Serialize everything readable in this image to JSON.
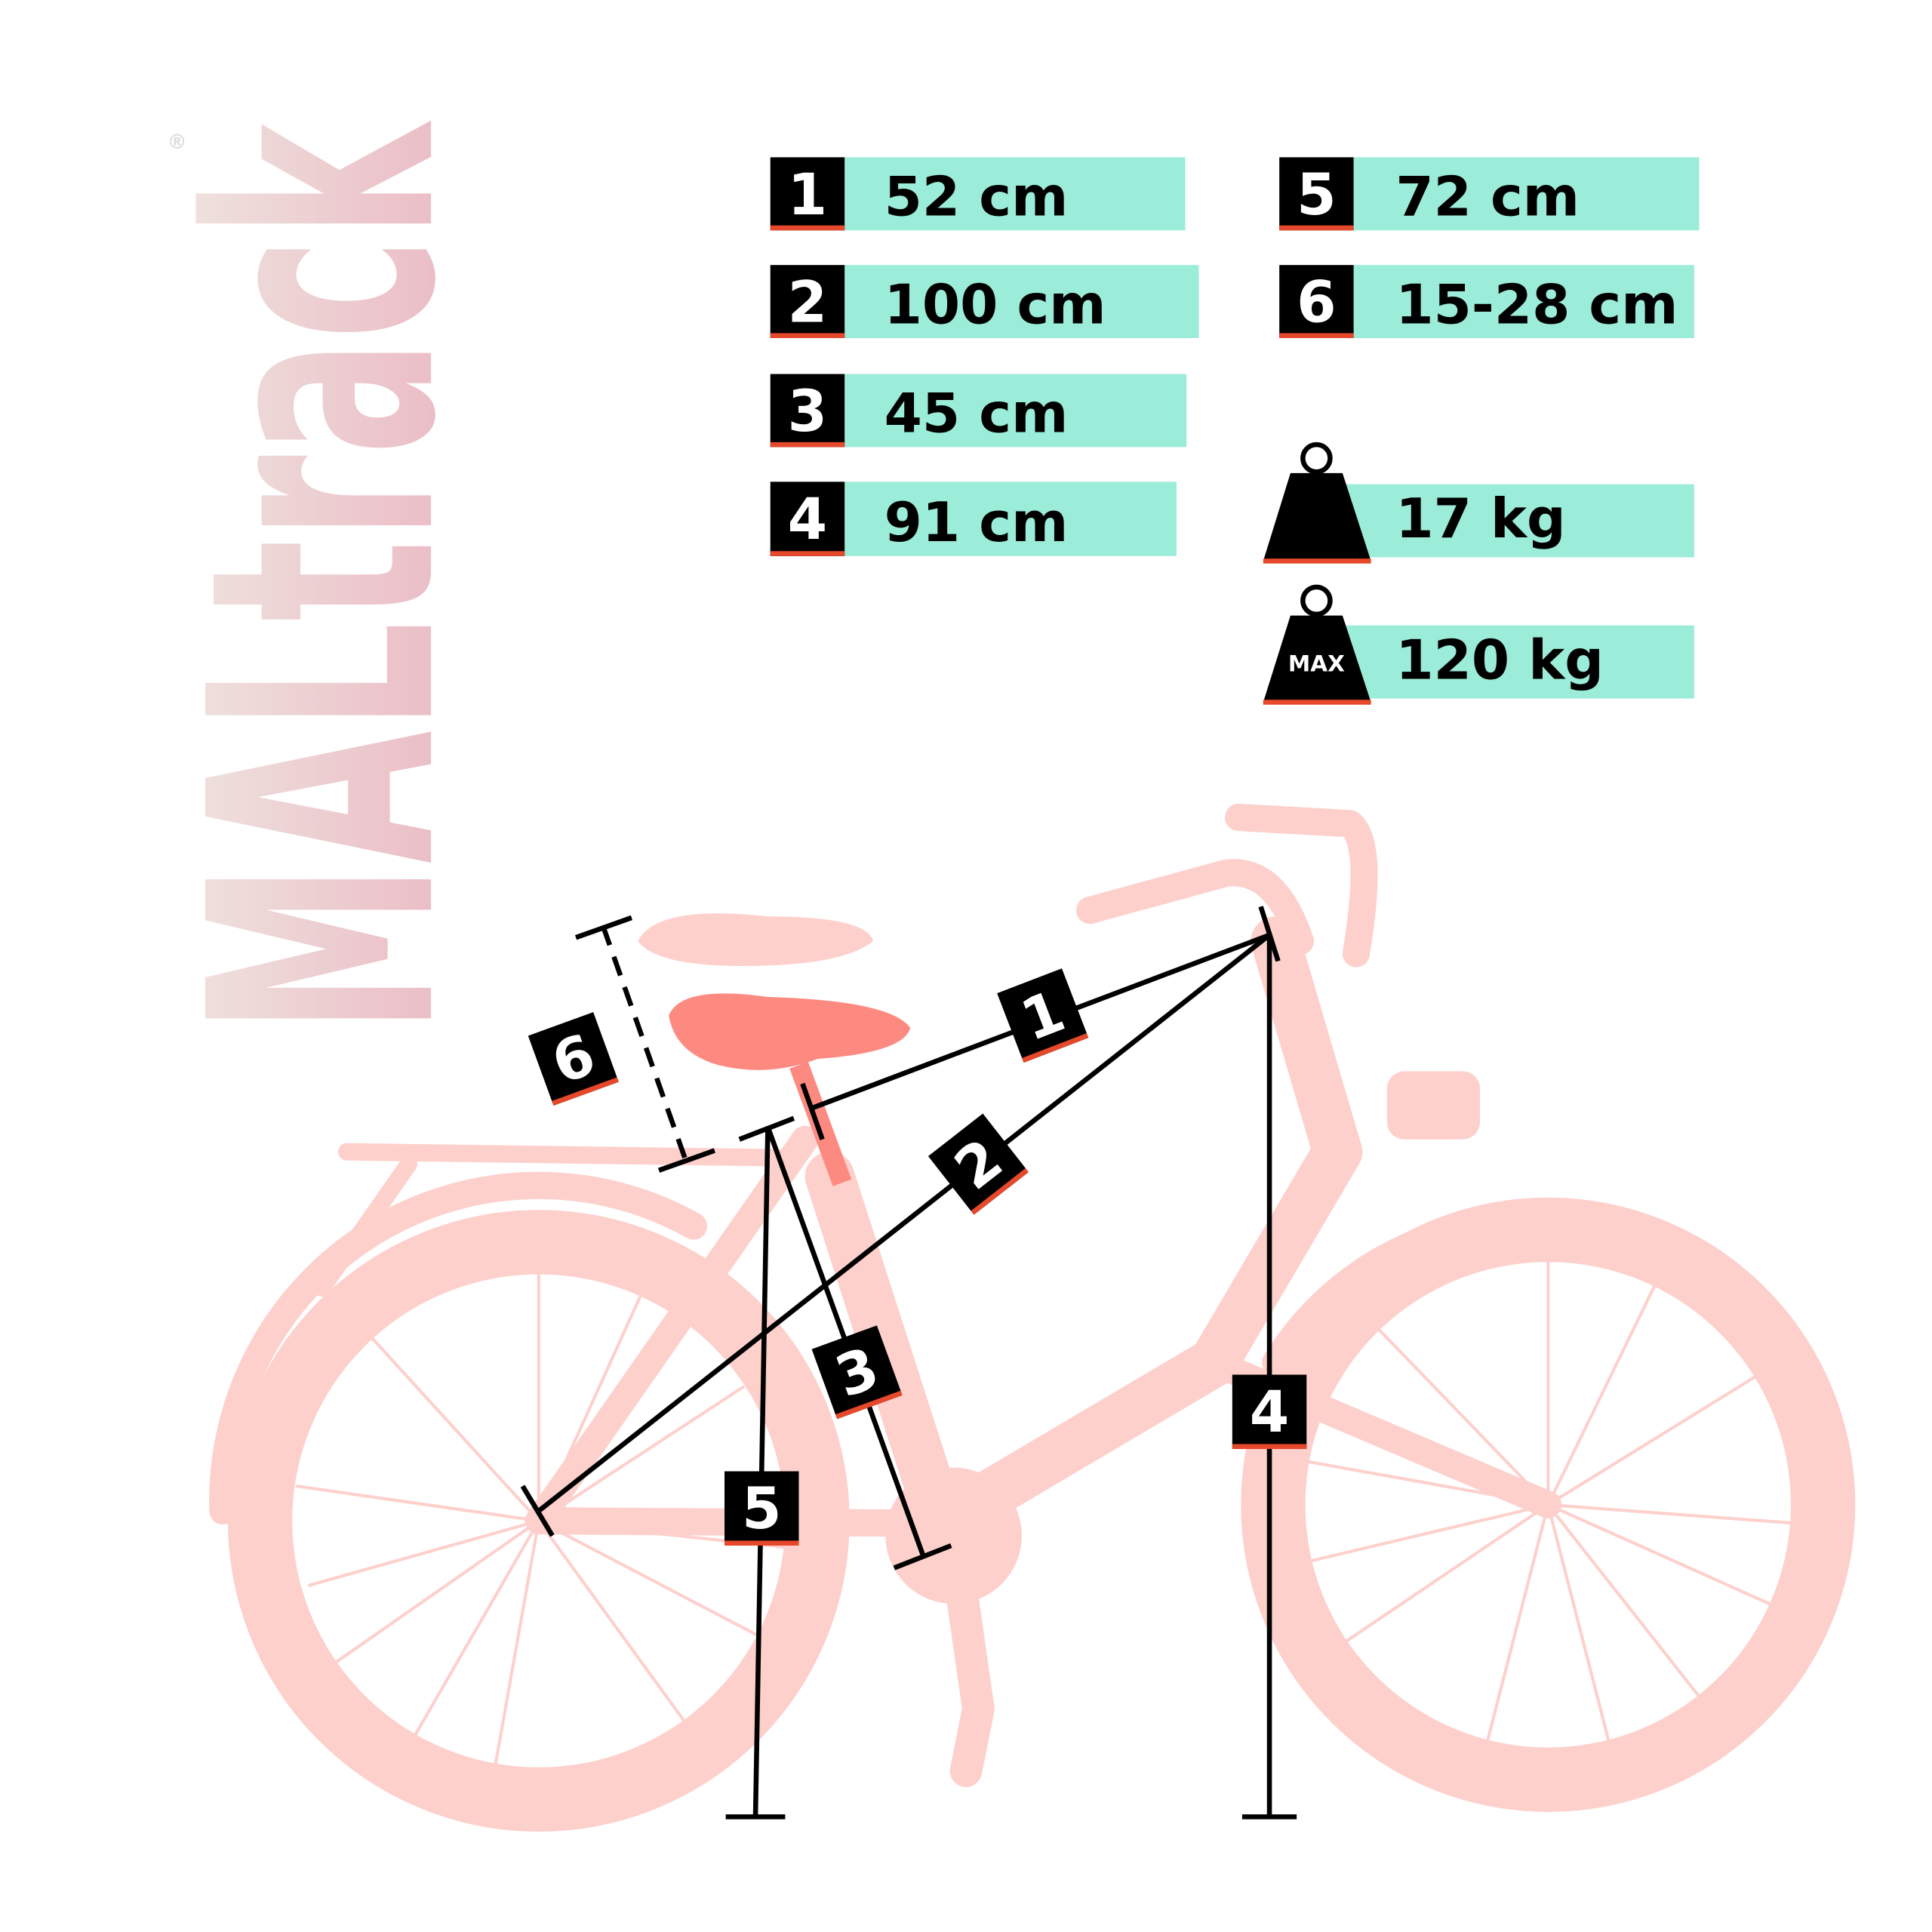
{
  "brand": {
    "logo_text": "MALtrack",
    "registered": "®"
  },
  "colors": {
    "accent_teal": "#9becd8",
    "accent_orange": "#e5482a",
    "bike_pink": "#fdd0cc",
    "saddle": "#fd8a80"
  },
  "measurements": [
    {
      "number": "1",
      "value": "52 cm"
    },
    {
      "number": "2",
      "value": "100 cm"
    },
    {
      "number": "3",
      "value": "45 cm"
    },
    {
      "number": "4",
      "value": "91 cm"
    },
    {
      "number": "5",
      "value": "72 cm"
    },
    {
      "number": "6",
      "value": "15-28 cm"
    }
  ],
  "weight": {
    "icon": "weight-icon",
    "value": "17 kg"
  },
  "max_load": {
    "icon": "max-weight-icon",
    "icon_label": "MAX",
    "value": "120 kg"
  }
}
